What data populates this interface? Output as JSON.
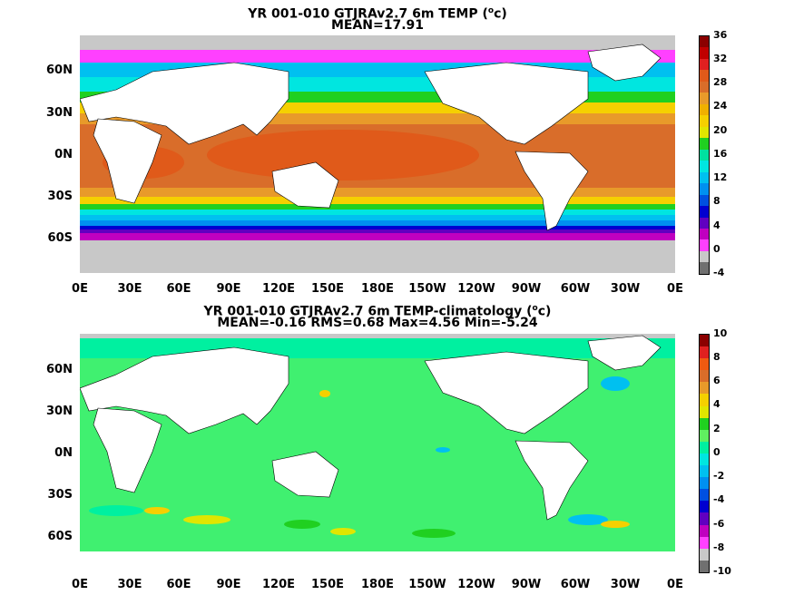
{
  "panels": [
    {
      "title_line1": "YR 001-010 GTJRAv2.7 6m TEMP (",
      "title_line1_sup": "o",
      "title_line1_end": "c)",
      "title_line2": "MEAN=17.91",
      "colorbar": {
        "labels": [
          "36",
          "32",
          "28",
          "24",
          "20",
          "16",
          "12",
          "8",
          "4",
          "0",
          "-4"
        ],
        "colors": [
          "#8b0000",
          "#c00000",
          "#e02020",
          "#e05a1a",
          "#d96d2a",
          "#e89a2a",
          "#f0b000",
          "#f5d000",
          "#e0e600",
          "#20d020",
          "#00e0a0",
          "#00e6e0",
          "#00c0f0",
          "#0090f0",
          "#0050e0",
          "#0000d0",
          "#6000c0",
          "#c000c0",
          "#ff40ff",
          "#c8c8c8",
          "#707070"
        ]
      }
    },
    {
      "title_line1": "YR 001-010 GTJRAv2.7 6m TEMP-climatology (",
      "title_line1_sup": "o",
      "title_line1_end": "c)",
      "title_line2": "MEAN=-0.16   RMS=0.68   Max=4.56   Min=-5.24",
      "colorbar": {
        "labels": [
          "10",
          "8",
          "6",
          "4",
          "2",
          "0",
          "-2",
          "-4",
          "-6",
          "-8",
          "-10"
        ],
        "colors": [
          "#8b0000",
          "#e02020",
          "#f05a10",
          "#d96d2a",
          "#e89a2a",
          "#f5d000",
          "#e0e600",
          "#20d020",
          "#60f060",
          "#00f0a0",
          "#00e6e0",
          "#00c0f0",
          "#0090f0",
          "#0050e0",
          "#0000d0",
          "#6000c0",
          "#c000c0",
          "#ff40ff",
          "#c8c8c8",
          "#707070"
        ]
      }
    }
  ],
  "lat_labels": [
    "60N",
    "30N",
    "0N",
    "30S",
    "60S"
  ],
  "lon_labels": [
    "0E",
    "30E",
    "60E",
    "90E",
    "120E",
    "150E",
    "180E",
    "150W",
    "120W",
    "90W",
    "60W",
    "30W",
    "0E"
  ],
  "colors": {
    "land": "#ffffff",
    "ice": "#c8c8c8",
    "anomaly_base": "#40f070"
  }
}
